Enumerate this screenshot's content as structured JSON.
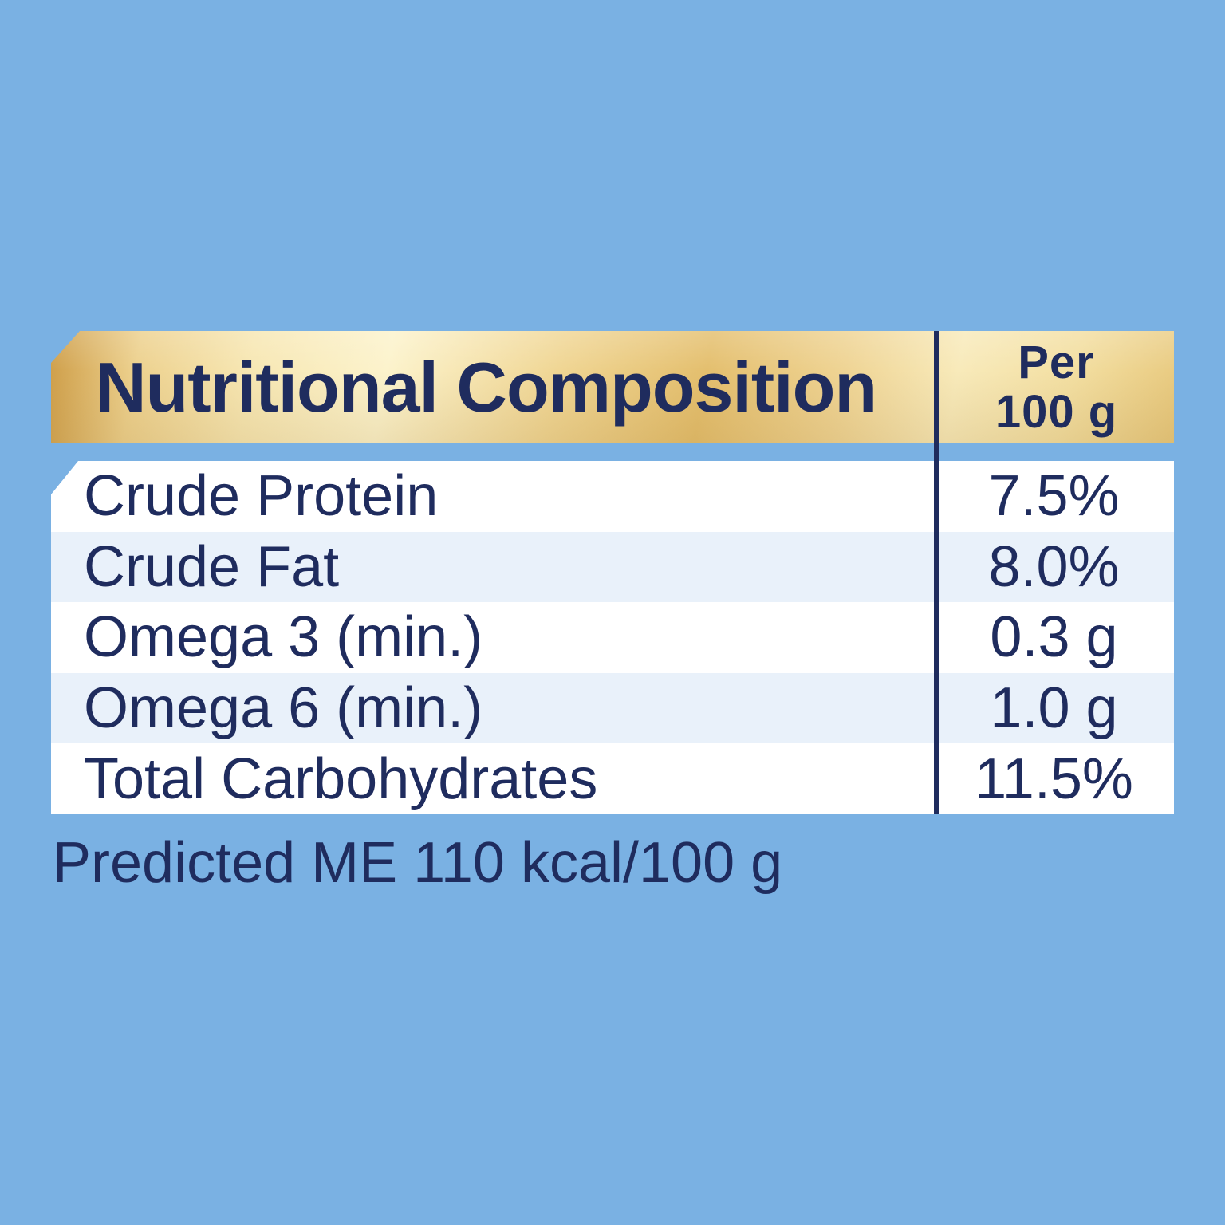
{
  "colors": {
    "background": "#7AB1E3",
    "text_navy": "#1F2C5E",
    "row_white": "#FFFFFF",
    "row_stripe": "#E9F1FA",
    "gold_dark": "#CD9C46",
    "gold_light": "#FCF3CC"
  },
  "header": {
    "title": "Nutritional Composition",
    "per_column": {
      "line1": "Per",
      "line2": "100 g"
    }
  },
  "table": {
    "rows": [
      {
        "label": "Crude Protein",
        "value": "7.5%"
      },
      {
        "label": "Crude Fat",
        "value": "8.0%"
      },
      {
        "label": "Omega 3 (min.)",
        "value": "0.3 g"
      },
      {
        "label": "Omega 6 (min.)",
        "value": "1.0 g"
      },
      {
        "label": "Total Carbohydrates",
        "value": "11.5%"
      }
    ]
  },
  "footer": {
    "note": "Predicted ME 110 kcal/100 g"
  }
}
